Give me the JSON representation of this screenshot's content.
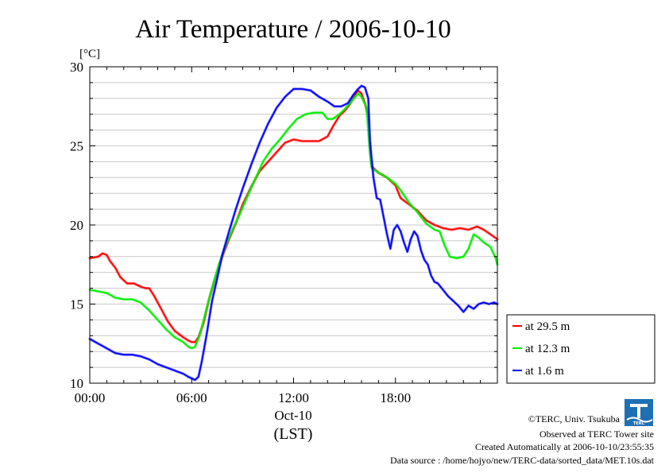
{
  "chart_data": {
    "type": "line",
    "title": "Air Temperature / 2006-10-10",
    "y_unit_label": "[°C]",
    "xlabel_date": "Oct-10",
    "xlabel": "(LST)",
    "xlim": [
      0,
      24
    ],
    "ylim": [
      10,
      30
    ],
    "grid": true,
    "legend_position": "right",
    "x_ticks": [
      {
        "x": 0,
        "label": "00:00"
      },
      {
        "x": 6,
        "label": "06:00"
      },
      {
        "x": 12,
        "label": "12:00"
      },
      {
        "x": 18,
        "label": "18:00"
      }
    ],
    "y_ticks": [
      {
        "y": 10,
        "label": "10"
      },
      {
        "y": 15,
        "label": "15"
      },
      {
        "y": 20,
        "label": "20"
      },
      {
        "y": 25,
        "label": "25"
      },
      {
        "y": 30,
        "label": "30"
      }
    ],
    "series": [
      {
        "name": "at 29.5 m",
        "color": "#ff0000",
        "points": [
          [
            0.0,
            17.9
          ],
          [
            0.5,
            18.0
          ],
          [
            0.75,
            18.2
          ],
          [
            1.0,
            18.1
          ],
          [
            1.2,
            17.7
          ],
          [
            1.5,
            17.3
          ],
          [
            1.8,
            16.7
          ],
          [
            2.2,
            16.3
          ],
          [
            2.6,
            16.3
          ],
          [
            3.0,
            16.1
          ],
          [
            3.3,
            16.0
          ],
          [
            3.5,
            16.0
          ],
          [
            3.8,
            15.5
          ],
          [
            4.2,
            14.7
          ],
          [
            4.6,
            13.9
          ],
          [
            5.0,
            13.3
          ],
          [
            5.5,
            12.9
          ],
          [
            5.8,
            12.7
          ],
          [
            6.0,
            12.6
          ],
          [
            6.2,
            12.6
          ],
          [
            6.4,
            12.9
          ],
          [
            6.7,
            13.8
          ],
          [
            7.0,
            15.2
          ],
          [
            7.4,
            16.7
          ],
          [
            7.8,
            18.0
          ],
          [
            8.2,
            19.1
          ],
          [
            8.6,
            20.1
          ],
          [
            9.0,
            21.3
          ],
          [
            9.5,
            22.4
          ],
          [
            10.0,
            23.4
          ],
          [
            10.5,
            24.0
          ],
          [
            11.0,
            24.6
          ],
          [
            11.5,
            25.2
          ],
          [
            12.0,
            25.4
          ],
          [
            12.5,
            25.3
          ],
          [
            13.0,
            25.3
          ],
          [
            13.5,
            25.3
          ],
          [
            14.0,
            25.6
          ],
          [
            14.3,
            26.2
          ],
          [
            14.7,
            26.9
          ],
          [
            15.0,
            27.2
          ],
          [
            15.3,
            27.6
          ],
          [
            15.6,
            28.2
          ],
          [
            15.8,
            28.5
          ],
          [
            16.0,
            28.3
          ],
          [
            16.2,
            27.7
          ],
          [
            16.4,
            26.8
          ],
          [
            16.5,
            24.8
          ],
          [
            16.6,
            23.7
          ],
          [
            17.0,
            23.3
          ],
          [
            17.5,
            23.0
          ],
          [
            18.0,
            22.5
          ],
          [
            18.3,
            21.7
          ],
          [
            18.8,
            21.3
          ],
          [
            19.3,
            20.9
          ],
          [
            19.8,
            20.3
          ],
          [
            20.3,
            20.0
          ],
          [
            20.8,
            19.8
          ],
          [
            21.3,
            19.7
          ],
          [
            21.8,
            19.8
          ],
          [
            22.3,
            19.7
          ],
          [
            22.8,
            19.9
          ],
          [
            23.2,
            19.7
          ],
          [
            23.6,
            19.4
          ],
          [
            24.0,
            19.1
          ]
        ]
      },
      {
        "name": "at 12.3 m",
        "color": "#00ee00",
        "points": [
          [
            0.0,
            15.9
          ],
          [
            0.5,
            15.8
          ],
          [
            1.0,
            15.7
          ],
          [
            1.5,
            15.4
          ],
          [
            2.0,
            15.3
          ],
          [
            2.5,
            15.3
          ],
          [
            3.0,
            15.1
          ],
          [
            3.5,
            14.6
          ],
          [
            4.0,
            14.0
          ],
          [
            4.5,
            13.4
          ],
          [
            5.0,
            12.9
          ],
          [
            5.5,
            12.6
          ],
          [
            5.8,
            12.3
          ],
          [
            6.0,
            12.2
          ],
          [
            6.2,
            12.3
          ],
          [
            6.5,
            13.1
          ],
          [
            6.8,
            14.4
          ],
          [
            7.2,
            16.0
          ],
          [
            7.6,
            17.5
          ],
          [
            8.0,
            18.7
          ],
          [
            8.4,
            19.7
          ],
          [
            8.8,
            20.6
          ],
          [
            9.2,
            21.6
          ],
          [
            9.7,
            22.8
          ],
          [
            10.2,
            24.0
          ],
          [
            10.7,
            24.8
          ],
          [
            11.2,
            25.4
          ],
          [
            11.7,
            26.1
          ],
          [
            12.2,
            26.7
          ],
          [
            12.7,
            27.0
          ],
          [
            13.2,
            27.1
          ],
          [
            13.7,
            27.1
          ],
          [
            14.0,
            26.7
          ],
          [
            14.3,
            26.7
          ],
          [
            14.7,
            27.0
          ],
          [
            15.0,
            27.3
          ],
          [
            15.4,
            27.8
          ],
          [
            15.8,
            28.3
          ],
          [
            16.0,
            28.1
          ],
          [
            16.3,
            27.4
          ],
          [
            16.5,
            24.5
          ],
          [
            16.6,
            23.6
          ],
          [
            17.0,
            23.3
          ],
          [
            17.5,
            23.0
          ],
          [
            18.0,
            22.6
          ],
          [
            18.3,
            22.2
          ],
          [
            18.8,
            21.4
          ],
          [
            19.3,
            20.8
          ],
          [
            19.8,
            20.1
          ],
          [
            20.3,
            19.7
          ],
          [
            20.6,
            19.6
          ],
          [
            20.9,
            18.7
          ],
          [
            21.2,
            18.0
          ],
          [
            21.6,
            17.9
          ],
          [
            22.0,
            18.0
          ],
          [
            22.3,
            18.5
          ],
          [
            22.6,
            19.4
          ],
          [
            22.9,
            19.2
          ],
          [
            23.2,
            18.9
          ],
          [
            23.6,
            18.6
          ],
          [
            23.9,
            17.9
          ],
          [
            24.0,
            17.5
          ]
        ]
      },
      {
        "name": "at 1.6 m",
        "color": "#0000ff",
        "points": [
          [
            0.0,
            12.8
          ],
          [
            0.5,
            12.5
          ],
          [
            1.0,
            12.2
          ],
          [
            1.5,
            11.9
          ],
          [
            2.0,
            11.8
          ],
          [
            2.5,
            11.8
          ],
          [
            3.0,
            11.7
          ],
          [
            3.5,
            11.5
          ],
          [
            4.0,
            11.2
          ],
          [
            4.5,
            11.0
          ],
          [
            5.0,
            10.8
          ],
          [
            5.5,
            10.6
          ],
          [
            5.8,
            10.4
          ],
          [
            6.0,
            10.3
          ],
          [
            6.2,
            10.2
          ],
          [
            6.4,
            10.4
          ],
          [
            6.6,
            11.4
          ],
          [
            6.9,
            13.2
          ],
          [
            7.2,
            15.2
          ],
          [
            7.5,
            16.6
          ],
          [
            7.8,
            18.1
          ],
          [
            8.2,
            19.6
          ],
          [
            8.6,
            21.0
          ],
          [
            9.0,
            22.3
          ],
          [
            9.5,
            23.8
          ],
          [
            10.0,
            25.2
          ],
          [
            10.5,
            26.4
          ],
          [
            11.0,
            27.4
          ],
          [
            11.5,
            28.1
          ],
          [
            12.0,
            28.6
          ],
          [
            12.5,
            28.6
          ],
          [
            13.0,
            28.5
          ],
          [
            13.5,
            28.1
          ],
          [
            14.0,
            27.8
          ],
          [
            14.4,
            27.5
          ],
          [
            14.8,
            27.5
          ],
          [
            15.2,
            27.7
          ],
          [
            15.5,
            28.2
          ],
          [
            15.8,
            28.6
          ],
          [
            16.0,
            28.8
          ],
          [
            16.2,
            28.7
          ],
          [
            16.4,
            28.0
          ],
          [
            16.5,
            25.3
          ],
          [
            16.7,
            23.0
          ],
          [
            16.9,
            21.7
          ],
          [
            17.1,
            21.6
          ],
          [
            17.3,
            20.5
          ],
          [
            17.5,
            19.4
          ],
          [
            17.7,
            18.5
          ],
          [
            17.9,
            19.7
          ],
          [
            18.1,
            20.0
          ],
          [
            18.3,
            19.6
          ],
          [
            18.5,
            18.9
          ],
          [
            18.7,
            18.3
          ],
          [
            18.9,
            19.1
          ],
          [
            19.1,
            19.6
          ],
          [
            19.3,
            19.3
          ],
          [
            19.5,
            18.4
          ],
          [
            19.7,
            17.8
          ],
          [
            19.9,
            17.5
          ],
          [
            20.1,
            16.8
          ],
          [
            20.3,
            16.4
          ],
          [
            20.5,
            16.3
          ],
          [
            20.8,
            15.9
          ],
          [
            21.1,
            15.5
          ],
          [
            21.4,
            15.2
          ],
          [
            21.7,
            14.9
          ],
          [
            22.0,
            14.5
          ],
          [
            22.3,
            14.9
          ],
          [
            22.6,
            14.7
          ],
          [
            22.9,
            15.0
          ],
          [
            23.2,
            15.1
          ],
          [
            23.5,
            15.0
          ],
          [
            23.8,
            15.1
          ],
          [
            24.0,
            15.0
          ]
        ]
      }
    ]
  },
  "footer": {
    "copyright": "©TERC, Univ. Tsukuba",
    "site": "Observed at TERC Tower site",
    "created": "Created Automatically at 2006-10-10/23:55:35",
    "source": "Data source : /home/hojyo/new/TERC-data/sorted_data/MET.10s.dat"
  },
  "logo": {
    "icon": "terc-logo-icon",
    "text": "TERC",
    "color": "#1f6fb4"
  }
}
